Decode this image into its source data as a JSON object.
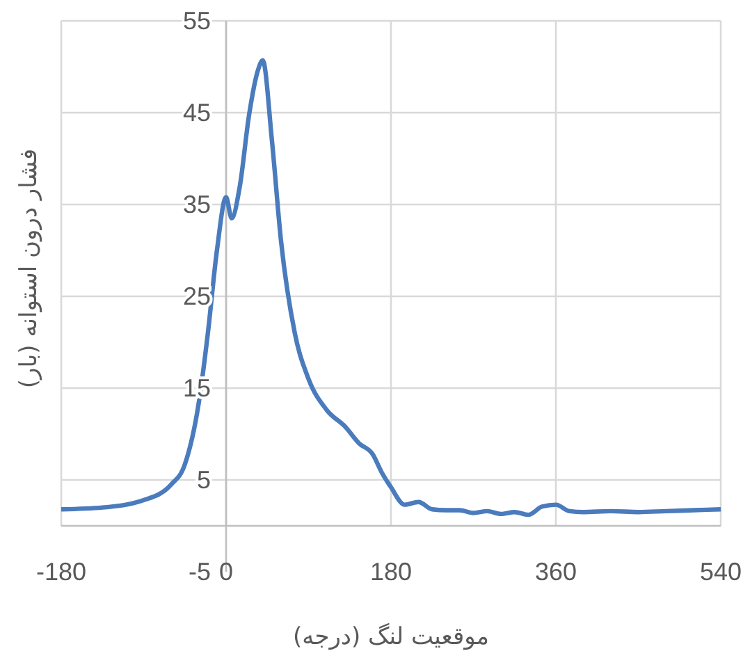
{
  "chart_data": {
    "type": "line",
    "xlabel": "موقعیت لنگ (درجه)",
    "ylabel": "فشار درون استوانه (بار)",
    "xlim": [
      -180,
      540
    ],
    "xticks": [
      -180,
      0,
      180,
      360,
      540
    ],
    "ylim": [
      -5,
      55
    ],
    "yticks": [
      -5,
      5,
      15,
      25,
      35,
      45,
      55
    ],
    "grid": true,
    "marker": "none",
    "line_style": "solid",
    "series": [
      {
        "color": "#4a7bbd",
        "x": [
          -180,
          -135,
          -90,
          -60,
          -45,
          -30,
          -20,
          -10,
          0,
          6,
          15,
          25,
          35,
          40,
          50,
          60,
          75,
          90,
          110,
          130,
          145,
          160,
          170,
          180,
          195,
          210,
          225,
          240,
          255,
          270,
          285,
          300,
          315,
          330,
          345,
          360,
          375,
          390,
          420,
          450,
          480,
          510,
          540
        ],
        "values": [
          1.8,
          2.0,
          2.8,
          4.5,
          6.7,
          13.3,
          20.9,
          30,
          35.8,
          33.5,
          37,
          44.7,
          49.7,
          50.7,
          42,
          31,
          21,
          16,
          12.6,
          10.8,
          9,
          7.8,
          5.8,
          4.2,
          2.3,
          2.6,
          1.8,
          1.7,
          1.7,
          1.4,
          1.6,
          1.3,
          1.5,
          1.2,
          2.1,
          2.3,
          1.6,
          1.5,
          1.6,
          1.5,
          1.6,
          1.7,
          1.8
        ]
      }
    ]
  }
}
